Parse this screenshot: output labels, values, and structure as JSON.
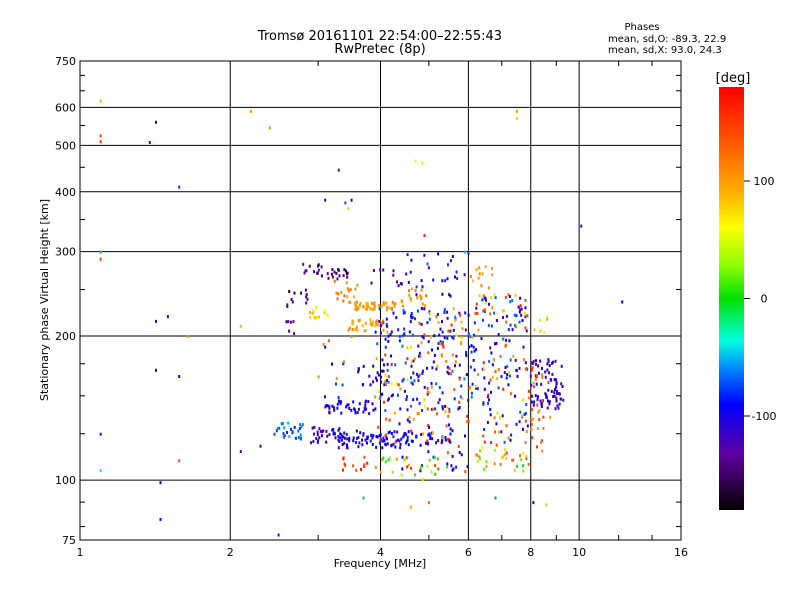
{
  "chart_data": {
    "type": "scatter",
    "title": "Tromsø 20161101 22:54:00–22:55:43",
    "subtitle": "RwPretec (8p)",
    "stats": {
      "heading": "Phases",
      "o_line": "mean, sd,O: -89.3, 22.9",
      "x_line": "mean, sd,X:  93.0, 24.3"
    },
    "xlabel": "Frequency [MHz]",
    "ylabel": "Stationary phase Virtual Height [km]",
    "x_scale": "log",
    "y_scale": "log",
    "xlim": [
      1,
      16
    ],
    "ylim": [
      75,
      750
    ],
    "x_ticks": [
      1,
      2,
      4,
      6,
      8,
      10,
      16
    ],
    "x_tick_labels": [
      "1",
      "2",
      "4",
      "6",
      "8",
      "10",
      "16"
    ],
    "y_ticks": [
      75,
      100,
      200,
      300,
      400,
      500,
      600,
      750
    ],
    "y_tick_labels": [
      "75",
      "100",
      "200",
      "300",
      "400",
      "500",
      "600",
      "750"
    ],
    "grid": true,
    "colorbar": {
      "label": "[deg]",
      "range": [
        -180,
        180
      ],
      "ticks": [
        100,
        0,
        -100
      ],
      "tick_labels": [
        "100",
        "0",
        "-100"
      ],
      "position": "right"
    },
    "points": [
      {
        "f": 1.1,
        "h": 620,
        "phase": 20
      },
      {
        "f": 1.1,
        "h": 525,
        "phase": 140
      },
      {
        "f": 1.1,
        "h": 510,
        "phase": 150
      },
      {
        "f": 1.1,
        "h": 300,
        "phase": 0
      },
      {
        "f": 1.1,
        "h": 290,
        "phase": 150
      },
      {
        "f": 1.1,
        "h": 125,
        "phase": -80
      },
      {
        "f": 1.1,
        "h": 105,
        "phase": -40
      },
      {
        "f": 1.38,
        "h": 508,
        "phase": -130
      },
      {
        "f": 1.42,
        "h": 560,
        "phase": -150
      },
      {
        "f": 1.42,
        "h": 215,
        "phase": -110
      },
      {
        "f": 1.42,
        "h": 170,
        "phase": -100
      },
      {
        "f": 1.45,
        "h": 83,
        "phase": -90
      },
      {
        "f": 1.45,
        "h": 99,
        "phase": -90
      },
      {
        "f": 1.5,
        "h": 220,
        "phase": -100
      },
      {
        "f": 1.58,
        "h": 410,
        "phase": -80
      },
      {
        "f": 1.58,
        "h": 165,
        "phase": -100
      },
      {
        "f": 1.58,
        "h": 110,
        "phase": 140
      },
      {
        "f": 1.65,
        "h": 200,
        "phase": 100
      },
      {
        "f": 2.1,
        "h": 210,
        "phase": 90
      },
      {
        "f": 2.2,
        "h": 590,
        "phase": 100
      },
      {
        "f": 2.4,
        "h": 545,
        "phase": 110
      },
      {
        "f": 2.5,
        "h": 77,
        "phase": -80
      },
      {
        "f": 2.1,
        "h": 115,
        "phase": -140
      },
      {
        "f": 2.3,
        "h": 118,
        "phase": -140
      },
      {
        "f": 3.1,
        "h": 385,
        "phase": -110
      },
      {
        "f": 3.3,
        "h": 445,
        "phase": -130
      },
      {
        "f": 3.4,
        "h": 380,
        "phase": -70
      },
      {
        "f": 3.45,
        "h": 370,
        "phase": 30
      },
      {
        "f": 3.5,
        "h": 385,
        "phase": -90
      },
      {
        "f": 4.7,
        "h": 465,
        "phase": 60
      },
      {
        "f": 4.85,
        "h": 460,
        "phase": 70
      },
      {
        "f": 7.5,
        "h": 590,
        "phase": 100
      },
      {
        "f": 7.5,
        "h": 570,
        "phase": 80
      },
      {
        "f": 10.1,
        "h": 340,
        "phase": -130
      },
      {
        "f": 12.2,
        "h": 236,
        "phase": -90
      },
      {
        "f": 4.9,
        "h": 325,
        "phase": 160
      },
      {
        "f": 5.9,
        "h": 300,
        "phase": -50
      },
      {
        "f": 6.0,
        "h": 298,
        "phase": -80
      },
      {
        "f": 3.5,
        "h": 200,
        "phase": 110
      },
      {
        "f": 3.1,
        "h": 190,
        "phase": -100
      },
      {
        "f": 5.0,
        "h": 90,
        "phase": 130
      },
      {
        "f": 6.8,
        "h": 92,
        "phase": -60
      },
      {
        "f": 8.1,
        "h": 90,
        "phase": -110
      },
      {
        "f": 8.6,
        "h": 89,
        "phase": 30
      },
      {
        "f": 3.7,
        "h": 92,
        "phase": -50
      },
      {
        "f": 4.6,
        "h": 88,
        "phase": 100
      }
    ],
    "point_clusters": [
      {
        "f": [
          2.75,
          3.05
        ],
        "h": [
          268,
          285
        ],
        "phase": [
          -160,
          -120
        ],
        "n": 12
      },
      {
        "f": [
          3.05,
          3.45
        ],
        "h": [
          262,
          282
        ],
        "phase": [
          -160,
          -130
        ],
        "n": 18
      },
      {
        "f": [
          2.6,
          2.9
        ],
        "h": [
          225,
          250
        ],
        "phase": [
          -165,
          -120
        ],
        "n": 12
      },
      {
        "f": [
          2.55,
          2.75
        ],
        "h": [
          200,
          222
        ],
        "phase": [
          -160,
          -110
        ],
        "n": 6
      },
      {
        "f": [
          2.85,
          3.2
        ],
        "h": [
          218,
          230
        ],
        "phase": [
          40,
          90
        ],
        "n": 14
      },
      {
        "f": [
          3.1,
          3.6
        ],
        "h": [
          235,
          262
        ],
        "phase": [
          90,
          130
        ],
        "n": 18
      },
      {
        "f": [
          3.45,
          4.05
        ],
        "h": [
          205,
          218
        ],
        "phase": [
          80,
          115
        ],
        "n": 35
      },
      {
        "f": [
          3.55,
          4.3
        ],
        "h": [
          227,
          236
        ],
        "phase": [
          90,
          115
        ],
        "n": 45
      },
      {
        "f": [
          4.4,
          4.95
        ],
        "h": [
          228,
          255
        ],
        "phase": [
          95,
          125
        ],
        "n": 18
      },
      {
        "f": [
          3.7,
          4.6
        ],
        "h": [
          255,
          278
        ],
        "phase": [
          -150,
          -110
        ],
        "n": 12
      },
      {
        "f": [
          2.45,
          2.8
        ],
        "h": [
          122,
          132
        ],
        "phase": [
          -95,
          -50
        ],
        "n": 28
      },
      {
        "f": [
          2.9,
          3.35
        ],
        "h": [
          120,
          130
        ],
        "phase": [
          -130,
          -90
        ],
        "n": 32
      },
      {
        "f": [
          3.3,
          4.6
        ],
        "h": [
          117,
          127
        ],
        "phase": [
          -115,
          -80
        ],
        "n": 80
      },
      {
        "f": [
          4.4,
          5.6
        ],
        "h": [
          118,
          126
        ],
        "phase": [
          -110,
          -80
        ],
        "n": 35
      },
      {
        "f": [
          3.1,
          3.9
        ],
        "h": [
          138,
          147
        ],
        "phase": [
          -115,
          -90
        ],
        "n": 40
      },
      {
        "f": [
          3.6,
          4.1
        ],
        "h": [
          158,
          175
        ],
        "phase": [
          -115,
          -90
        ],
        "n": 18
      },
      {
        "f": [
          3.3,
          3.8
        ],
        "h": [
          105,
          112
        ],
        "phase": [
          130,
          170
        ],
        "n": 12
      },
      {
        "f": [
          3.9,
          6.1
        ],
        "h": [
          140,
          230
        ],
        "phase": [
          -120,
          -60
        ],
        "n": 170
      },
      {
        "f": [
          3.9,
          6.1
        ],
        "h": [
          140,
          230
        ],
        "phase": [
          60,
          170
        ],
        "n": 70
      },
      {
        "f": [
          4.5,
          5.9
        ],
        "h": [
          240,
          298
        ],
        "phase": [
          -120,
          -70
        ],
        "n": 25
      },
      {
        "f": [
          3.9,
          6.1
        ],
        "h": [
          104,
          140
        ],
        "phase": [
          80,
          160
        ],
        "n": 40
      },
      {
        "f": [
          4.3,
          6.0
        ],
        "h": [
          104,
          135
        ],
        "phase": [
          -110,
          -80
        ],
        "n": 25
      },
      {
        "f": [
          4.0,
          5.5
        ],
        "h": [
          100,
          112
        ],
        "phase": [
          -10,
          40
        ],
        "n": 15
      },
      {
        "f": [
          6.0,
          7.9
        ],
        "h": [
          120,
          245
        ],
        "phase": [
          -120,
          -60
        ],
        "n": 110
      },
      {
        "f": [
          6.0,
          7.9
        ],
        "h": [
          110,
          250
        ],
        "phase": [
          70,
          170
        ],
        "n": 70
      },
      {
        "f": [
          6.0,
          6.8
        ],
        "h": [
          250,
          280
        ],
        "phase": [
          80,
          120
        ],
        "n": 12
      },
      {
        "f": [
          8.0,
          9.3
        ],
        "h": [
          140,
          180
        ],
        "phase": [
          -130,
          -100
        ],
        "n": 80
      },
      {
        "f": [
          7.9,
          8.8
        ],
        "h": [
          115,
          175
        ],
        "phase": [
          90,
          160
        ],
        "n": 30
      },
      {
        "f": [
          8.1,
          8.7
        ],
        "h": [
          200,
          220
        ],
        "phase": [
          60,
          100
        ],
        "n": 6
      },
      {
        "f": [
          6.2,
          8.0
        ],
        "h": [
          104,
          118
        ],
        "phase": [
          -30,
          140
        ],
        "n": 25
      },
      {
        "f": [
          3.05,
          3.5
        ],
        "h": [
          148,
          190
        ],
        "phase": [
          -100,
          -70
        ],
        "n": 6
      },
      {
        "f": [
          2.95,
          3.4
        ],
        "h": [
          160,
          200
        ],
        "phase": [
          90,
          130
        ],
        "n": 5
      }
    ]
  }
}
